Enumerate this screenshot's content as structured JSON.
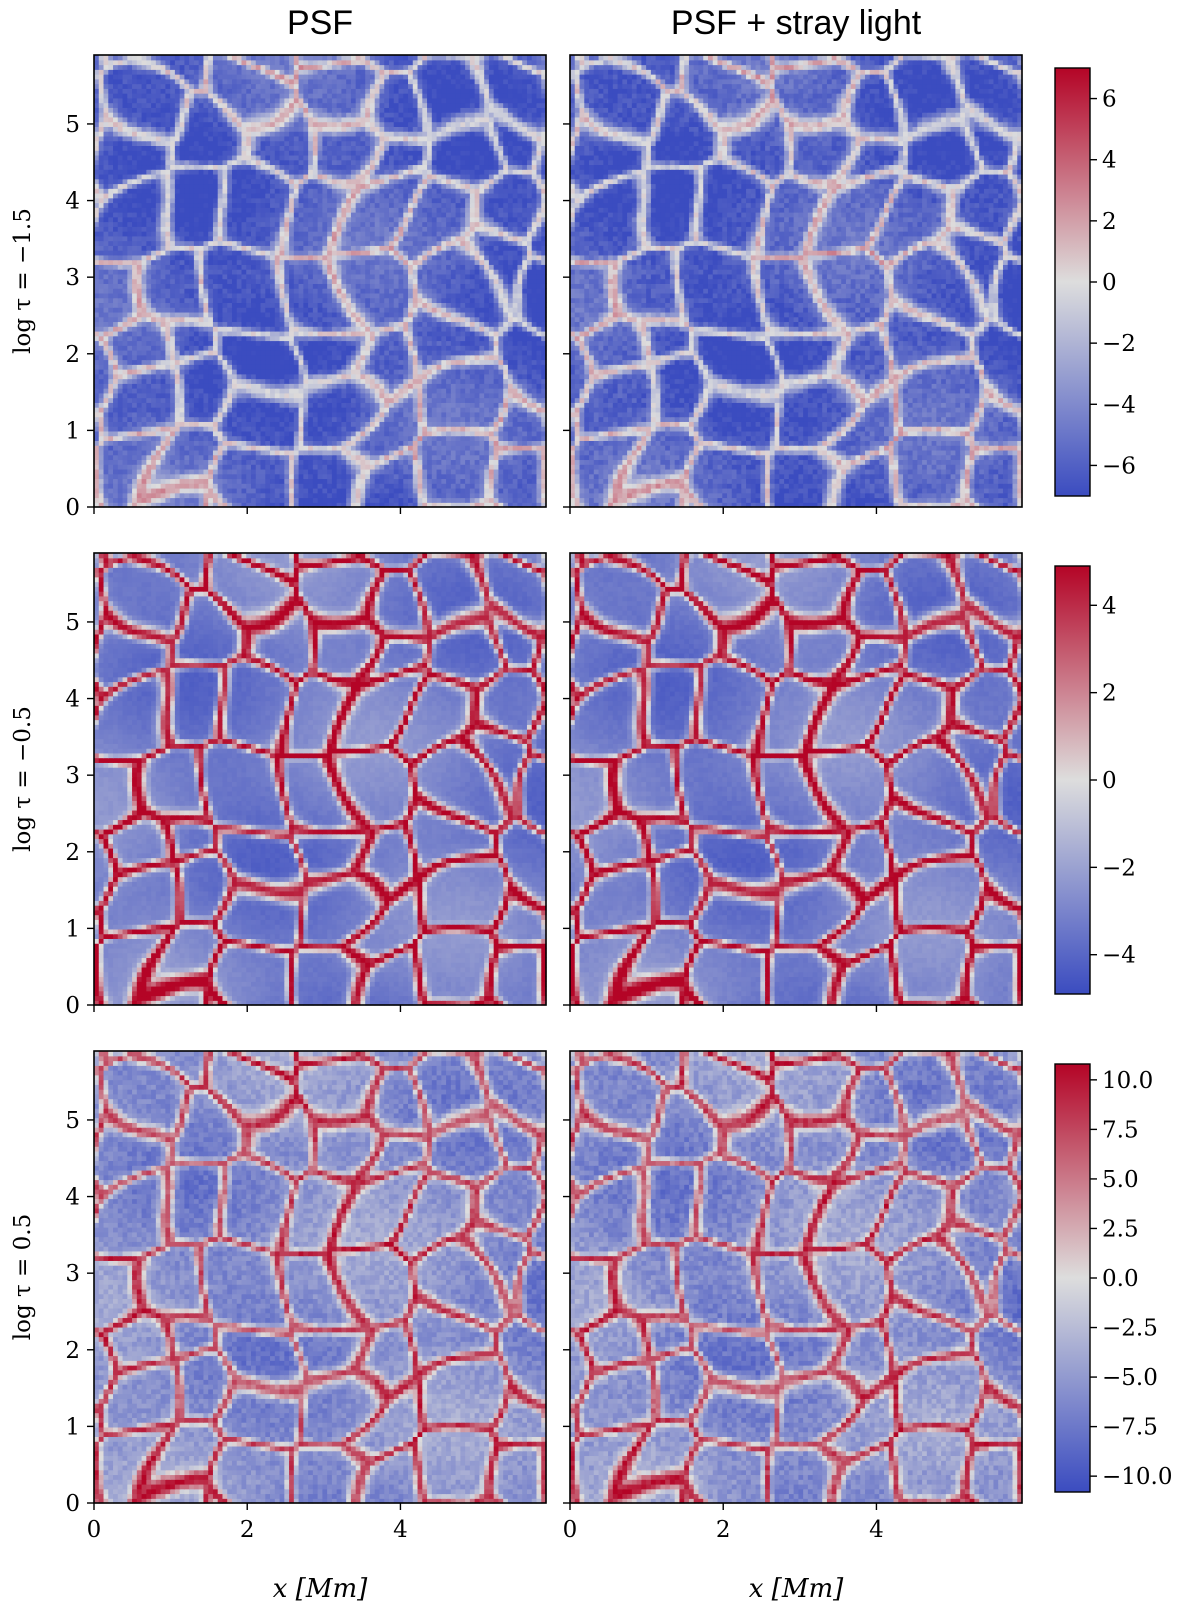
{
  "chart_data": {
    "type": "heatmap",
    "columns": [
      "PSF",
      "PSF + stray light"
    ],
    "colormap": {
      "name": "coolwarm",
      "low": "#3b4cc0",
      "mid": "#dddddd",
      "high": "#b40426"
    },
    "xlabel": "x [Mm]",
    "xlim": [
      0,
      5.9
    ],
    "ylim": [
      0,
      5.9
    ],
    "x_ticks": [
      0,
      2,
      4
    ],
    "y_ticks": [
      0,
      1,
      2,
      3,
      4,
      5
    ],
    "rows": [
      {
        "ylabel": "log τ = −1.5",
        "colorbar_range": [
          -7,
          7
        ],
        "colorbar_ticks": [
          {
            "value": 6,
            "label": "6"
          },
          {
            "value": 4,
            "label": "4"
          },
          {
            "value": 2,
            "label": "2"
          },
          {
            "value": 0,
            "label": "0"
          },
          {
            "value": -2,
            "label": "−2"
          },
          {
            "value": -4,
            "label": "−4"
          },
          {
            "value": -6,
            "label": "−6"
          }
        ],
        "bias": -0.7,
        "lane_strength": 0.55,
        "speckle": 0.2
      },
      {
        "ylabel": "log τ = −0.5",
        "colorbar_range": [
          -4.9,
          4.9
        ],
        "colorbar_ticks": [
          {
            "value": 4,
            "label": "4"
          },
          {
            "value": 2,
            "label": "2"
          },
          {
            "value": 0,
            "label": "0"
          },
          {
            "value": -2,
            "label": "−2"
          },
          {
            "value": -4,
            "label": "−4"
          }
        ],
        "bias": -0.35,
        "lane_strength": 0.9,
        "speckle": 0.06
      },
      {
        "ylabel": "log τ = 0.5",
        "colorbar_range": [
          -10.8,
          10.8
        ],
        "colorbar_ticks": [
          {
            "value": 10,
            "label": "10.0"
          },
          {
            "value": 7.5,
            "label": "7.5"
          },
          {
            "value": 5,
            "label": "5.0"
          },
          {
            "value": 2.5,
            "label": "2.5"
          },
          {
            "value": 0,
            "label": "0.0"
          },
          {
            "value": -2.5,
            "label": "−2.5"
          },
          {
            "value": -5,
            "label": "−5.0"
          },
          {
            "value": -7.5,
            "label": "−7.5"
          },
          {
            "value": -10,
            "label": "−10.0"
          }
        ],
        "bias": -0.3,
        "lane_strength": 0.7,
        "speckle": 0.22
      }
    ]
  }
}
